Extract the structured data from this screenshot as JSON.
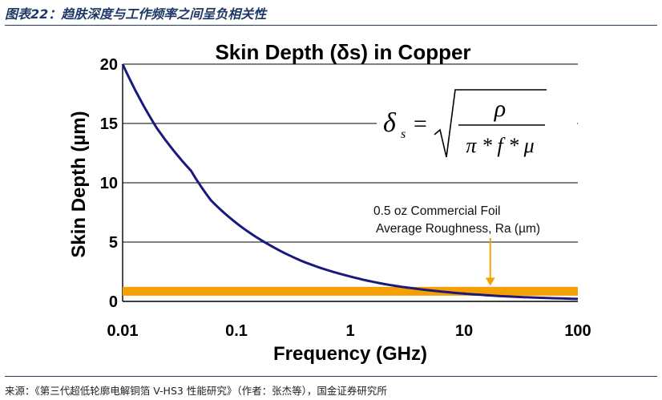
{
  "figure": {
    "caption": "图表22：趋肤深度与工作频率之间呈负相关性",
    "source": "来源：《第三代超低轮廓电解铜箔 V-HS3 性能研究》（作者：张杰等），国金证券研究所"
  },
  "chart_data": {
    "type": "line",
    "title": "Skin Depth (δs) in Copper",
    "xlabel": "Frequency (GHz)",
    "ylabel": "Skin Depth (µm)",
    "xscale": "log",
    "xlim": [
      0.01,
      100
    ],
    "ylim": [
      0,
      20
    ],
    "x_ticks": [
      "0.01",
      "0.1",
      "1",
      "10",
      "100"
    ],
    "y_ticks": [
      "0",
      "5",
      "10",
      "15",
      "20"
    ],
    "grid": "horizontal",
    "series": [
      {
        "name": "Skin depth in copper",
        "color": "#1a1a7e",
        "x": [
          0.01,
          0.02,
          0.04,
          0.06,
          0.1,
          0.2,
          0.4,
          1,
          2,
          4,
          10,
          20,
          40,
          100
        ],
        "y": [
          20.0,
          14.6,
          11.0,
          8.5,
          6.6,
          4.7,
          3.3,
          2.1,
          1.46,
          1.04,
          0.66,
          0.46,
          0.33,
          0.21
        ]
      },
      {
        "name": "0.5 oz Commercial Foil Average Roughness, Ra (µm)",
        "color": "#f5a000",
        "x": [
          0.01,
          100
        ],
        "y": [
          0.85,
          0.85
        ]
      }
    ],
    "annotations": {
      "line1": "0.5 oz Commercial Foil",
      "line2": "Average Roughness, Ra (µm)",
      "arrow_x": 17
    },
    "formula": {
      "lhs": "δ",
      "sub": "s",
      "eq": "=",
      "numerator": "ρ",
      "denominator": "π * f * μ"
    }
  }
}
